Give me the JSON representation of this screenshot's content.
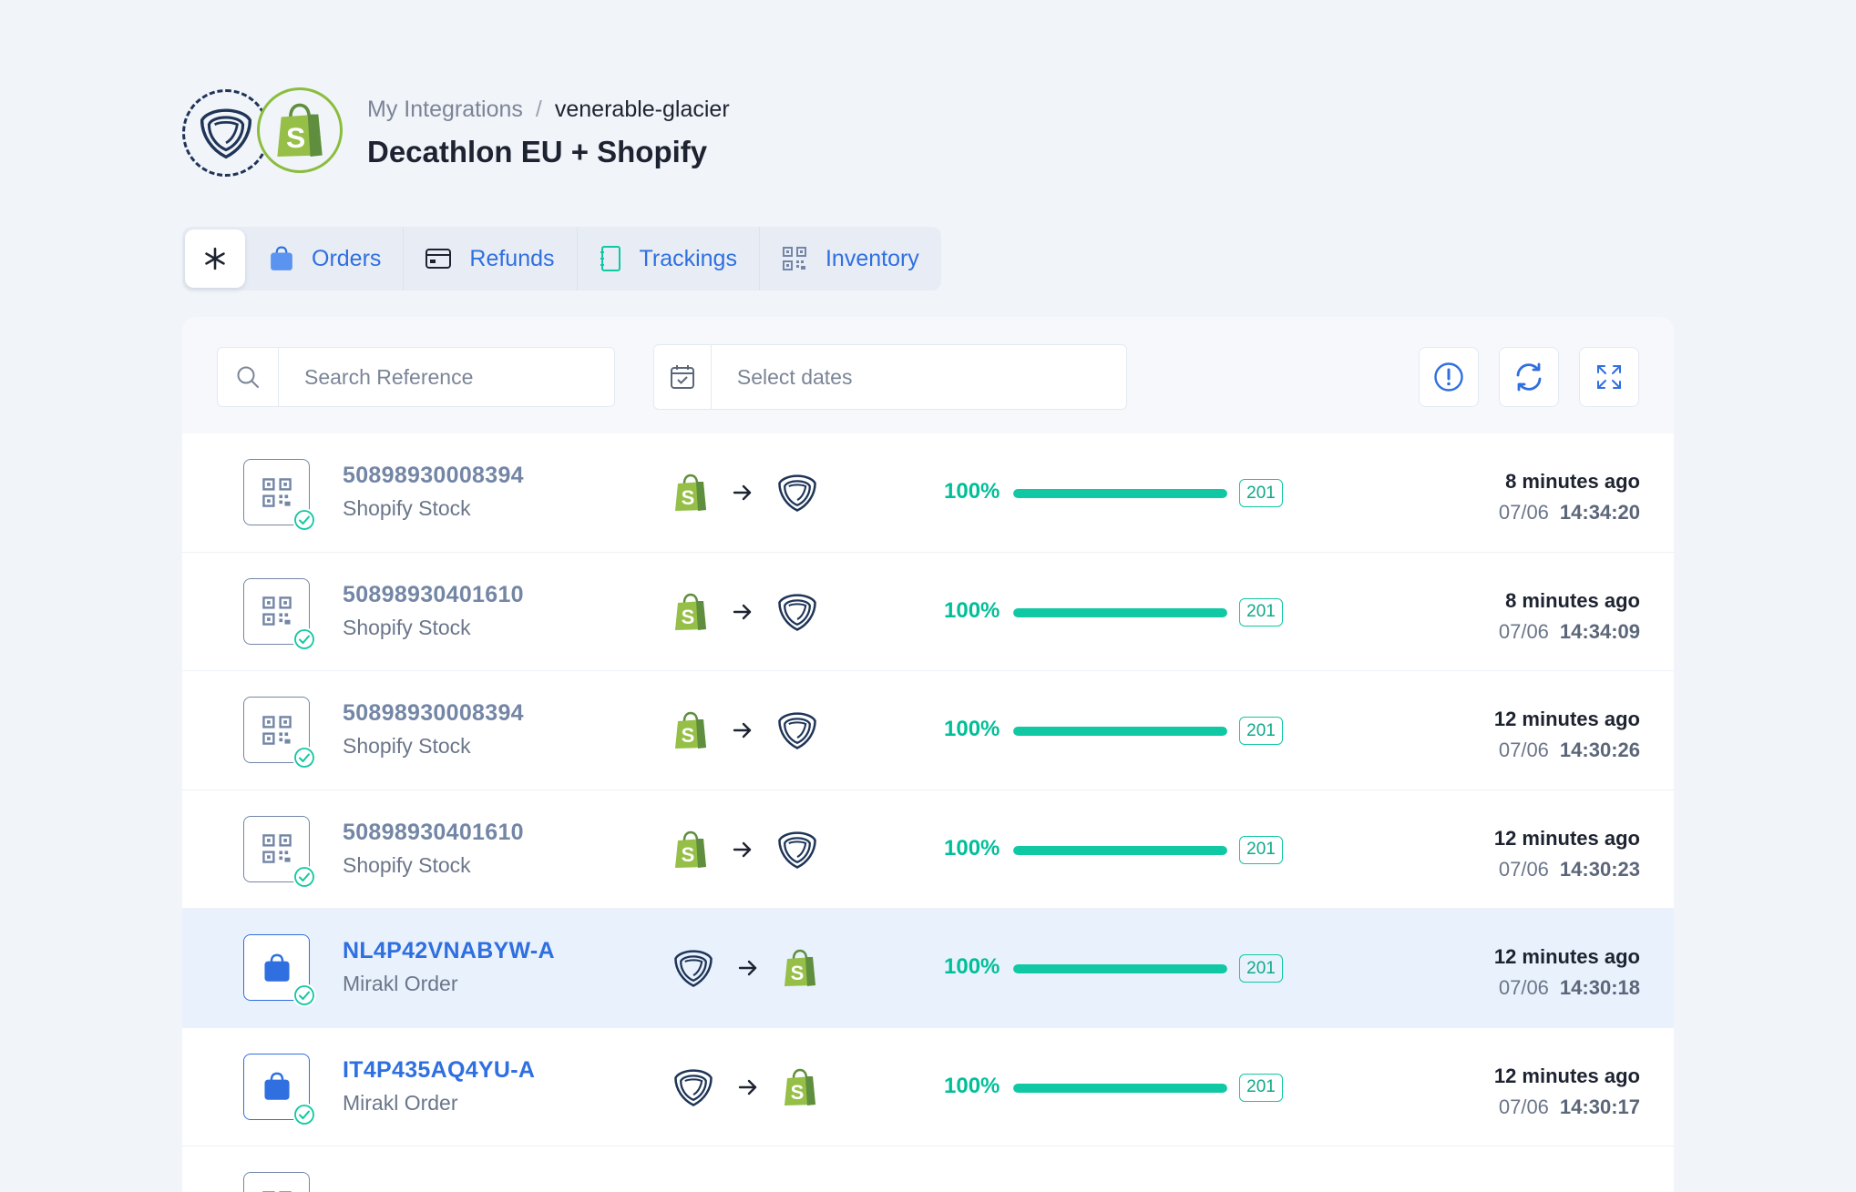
{
  "header": {
    "breadcrumb_parent": "My Integrations",
    "breadcrumb_separator": "/",
    "breadcrumb_current": "venerable-glacier",
    "title": "Decathlon EU + Shopify"
  },
  "tabs": [
    {
      "label": "",
      "icon": "asterisk-icon",
      "active": true
    },
    {
      "label": "Orders",
      "icon": "shopping-bag-icon"
    },
    {
      "label": "Refunds",
      "icon": "credit-card-icon"
    },
    {
      "label": "Trackings",
      "icon": "notebook-icon"
    },
    {
      "label": "Inventory",
      "icon": "qr-code-icon"
    }
  ],
  "search": {
    "placeholder": "Search Reference",
    "value": ""
  },
  "dates": {
    "placeholder": "Select dates",
    "value": ""
  },
  "toolbar_buttons": [
    "alert-icon",
    "refresh-icon",
    "expand-icon"
  ],
  "colors": {
    "accent": "#2f6fe0",
    "success": "#10c8a3",
    "shopify_green": "#95bf47",
    "mirakl_navy": "#1f3558",
    "highlight_row": "#e9f1fd"
  },
  "rows": [
    {
      "type": "inventory",
      "ref": "50898930008394",
      "kind": "Shopify Stock",
      "from": "shopify",
      "to": "mirakl",
      "progress_label": "100%",
      "progress": 100,
      "code": "201",
      "ago": "8 minutes ago",
      "date": "07/06",
      "time": "14:34:20"
    },
    {
      "type": "inventory",
      "ref": "50898930401610",
      "kind": "Shopify Stock",
      "from": "shopify",
      "to": "mirakl",
      "progress_label": "100%",
      "progress": 100,
      "code": "201",
      "ago": "8 minutes ago",
      "date": "07/06",
      "time": "14:34:09"
    },
    {
      "type": "inventory",
      "ref": "50898930008394",
      "kind": "Shopify Stock",
      "from": "shopify",
      "to": "mirakl",
      "progress_label": "100%",
      "progress": 100,
      "code": "201",
      "ago": "12 minutes ago",
      "date": "07/06",
      "time": "14:30:26"
    },
    {
      "type": "inventory",
      "ref": "50898930401610",
      "kind": "Shopify Stock",
      "from": "shopify",
      "to": "mirakl",
      "progress_label": "100%",
      "progress": 100,
      "code": "201",
      "ago": "12 minutes ago",
      "date": "07/06",
      "time": "14:30:23"
    },
    {
      "type": "order",
      "ref": "NL4P42VNABYW-A",
      "kind": "Mirakl Order",
      "from": "mirakl",
      "to": "shopify",
      "progress_label": "100%",
      "progress": 100,
      "code": "201",
      "ago": "12 minutes ago",
      "date": "07/06",
      "time": "14:30:18",
      "highlight": true
    },
    {
      "type": "order",
      "ref": "IT4P435AQ4YU-A",
      "kind": "Mirakl Order",
      "from": "mirakl",
      "to": "shopify",
      "progress_label": "100%",
      "progress": 100,
      "code": "201",
      "ago": "12 minutes ago",
      "date": "07/06",
      "time": "14:30:17"
    }
  ]
}
